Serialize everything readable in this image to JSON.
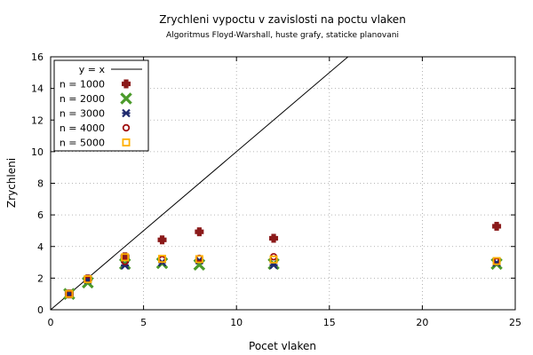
{
  "chart_data": {
    "type": "scatter",
    "title": "Zrychleni vypoctu v zavislosti na poctu vlaken",
    "subtitle": "Algoritmus Floyd-Warshall, huste grafy, staticke planovani",
    "xlabel": "Pocet vlaken",
    "ylabel": "Zrychleni",
    "xlim": [
      0,
      25
    ],
    "ylim": [
      0,
      16
    ],
    "xticks": [
      0,
      5,
      10,
      15,
      20,
      25
    ],
    "yticks": [
      0,
      2,
      4,
      6,
      8,
      10,
      12,
      14,
      16
    ],
    "grid": true,
    "legend_position": "top-left",
    "reference_line": {
      "name": "y = x",
      "color": "#000000",
      "from": [
        0,
        0
      ],
      "to": [
        16,
        16
      ]
    },
    "series": [
      {
        "name": "n = 1000",
        "color": "#8b1a1a",
        "marker": "plus",
        "x": [
          1,
          2,
          4,
          6,
          8,
          12,
          24
        ],
        "y": [
          1.0,
          1.95,
          3.35,
          4.42,
          4.93,
          4.52,
          5.28
        ]
      },
      {
        "name": "n = 2000",
        "color": "#4a9a2a",
        "marker": "cross",
        "x": [
          1,
          2,
          4,
          6,
          8,
          12,
          24
        ],
        "y": [
          1.0,
          1.72,
          2.9,
          2.95,
          2.85,
          2.9,
          2.9
        ]
      },
      {
        "name": "n = 3000",
        "color": "#1f2a6e",
        "marker": "star",
        "x": [
          1,
          2,
          4,
          6,
          8,
          12,
          24
        ],
        "y": [
          1.0,
          1.88,
          2.8,
          3.0,
          3.12,
          2.82,
          2.98
        ]
      },
      {
        "name": "n = 4000",
        "color": "#a01010",
        "marker": "circle",
        "x": [
          1,
          2,
          4,
          6,
          8,
          12,
          24
        ],
        "y": [
          1.0,
          1.9,
          3.05,
          3.18,
          3.25,
          3.35,
          3.05
        ]
      },
      {
        "name": "n = 5000",
        "color": "#ffb000",
        "marker": "square",
        "x": [
          1,
          2,
          4,
          6,
          8,
          12,
          24
        ],
        "y": [
          1.0,
          1.93,
          3.32,
          3.22,
          3.2,
          3.18,
          3.08
        ]
      }
    ]
  }
}
